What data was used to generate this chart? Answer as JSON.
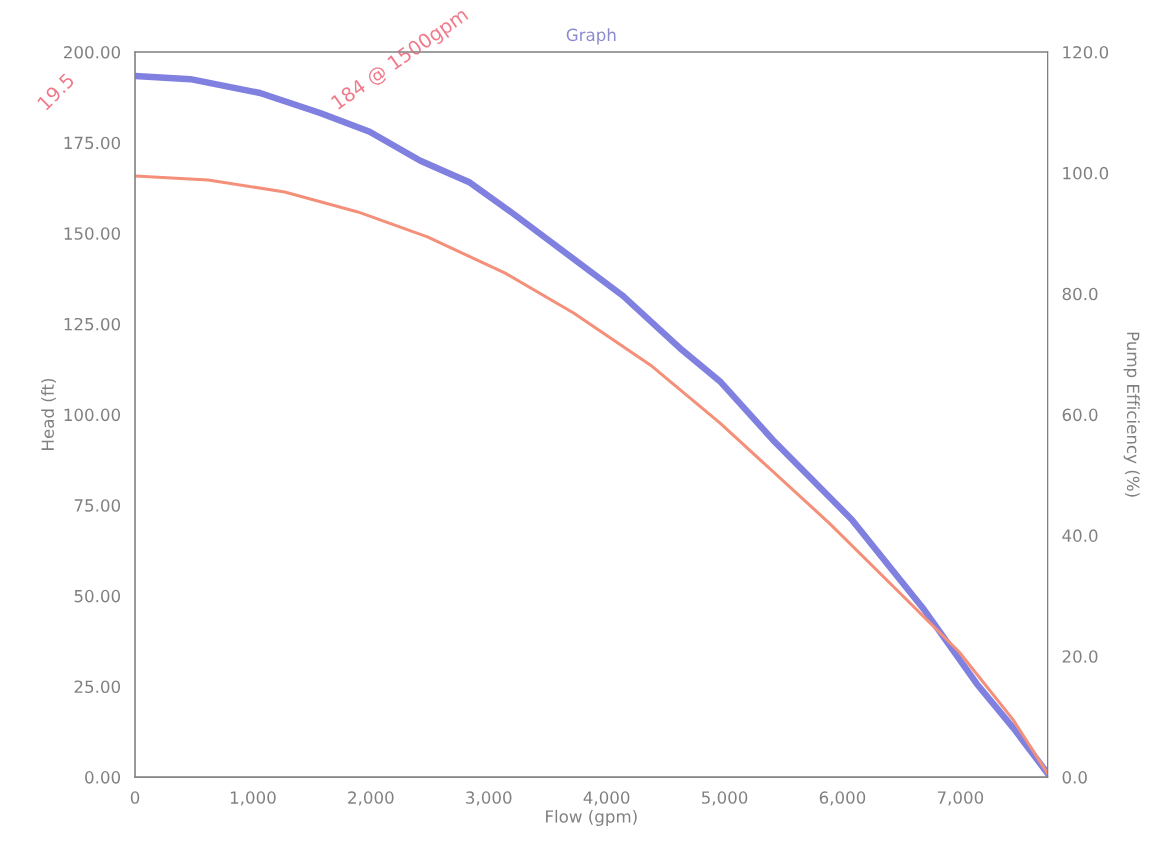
{
  "chart_data": {
    "type": "line",
    "title": "Graph",
    "xlabel": "Flow (gpm)",
    "ylabel": "Head (ft)",
    "y2label": "Pump Efficiency (%)",
    "annotations": [
      {
        "text": "184 @ 1500gpm",
        "x": 1500,
        "y": 184
      },
      "19.5"
    ],
    "series": [
      {
        "color": "#8080e0",
        "x": [
          0,
          470,
          1060,
          1570,
          1990,
          2420,
          2840,
          3200,
          4140,
          4640,
          4960,
          5410,
          6080,
          6690,
          7140,
          7450,
          7740
        ],
        "values": [
          193.4,
          192.5,
          188.7,
          183.2,
          178,
          170,
          164,
          155.6,
          132.7,
          117.8,
          109.2,
          93,
          71,
          46.3,
          25.7,
          13.5,
          1
        ]
      },
      {
        "color": "#f4907a",
        "x": [
          0,
          620,
          1270,
          1890,
          2480,
          3140,
          3720,
          4370,
          4960,
          5890,
          6530,
          6990,
          7450,
          7740
        ],
        "values": [
          165.8,
          164.7,
          161.4,
          155.9,
          149,
          139,
          128,
          113.7,
          97.7,
          70,
          49.4,
          34.5,
          15.7,
          1
        ]
      }
    ],
    "xlim": [
      0,
      7740
    ],
    "xticks": [
      0,
      {
        "value": 1000,
        "label": "1,000"
      },
      {
        "value": 2000,
        "label": "2,000"
      },
      {
        "value": 3000,
        "label": "3,000"
      },
      {
        "value": 4000,
        "label": "4,000"
      },
      {
        "value": 5000,
        "label": "5,000"
      },
      {
        "value": 6000,
        "label": "6,000"
      },
      {
        "value": 7000,
        "label": "7,000"
      }
    ],
    "ylim": [
      0,
      200
    ],
    "yticks": [
      {
        "value": 0,
        "label": "0.00"
      },
      {
        "value": 25,
        "label": "25.00"
      },
      {
        "value": 50,
        "label": "50.00"
      },
      {
        "value": 75,
        "label": "75.00"
      },
      {
        "value": 100,
        "label": "100.00"
      },
      {
        "value": 125,
        "label": "125.00"
      },
      {
        "value": 150,
        "label": "150.00"
      },
      {
        "value": 175,
        "label": "175.00"
      },
      {
        "value": 200,
        "label": "200.00"
      }
    ],
    "y2lim": [
      0,
      120
    ],
    "y2ticks": [
      {
        "value": 0,
        "label": "0.0"
      },
      {
        "value": 20,
        "label": "20.0"
      },
      {
        "value": 40,
        "label": "40.0"
      },
      {
        "value": 60,
        "label": "60.0"
      },
      {
        "value": 80,
        "label": "80.0"
      },
      {
        "value": 100,
        "label": "100.0"
      },
      {
        "value": 120,
        "label": "120.0"
      }
    ],
    "grid": false,
    "legend": false,
    "marker": "none",
    "line_style": "solid"
  }
}
